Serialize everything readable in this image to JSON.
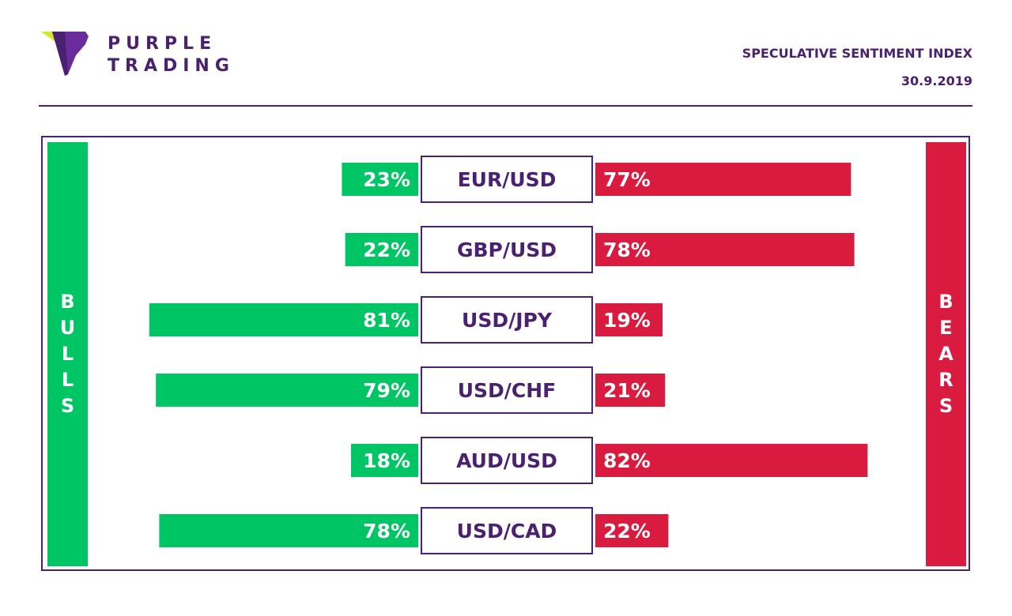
{
  "brand": {
    "line1": "PURPLE",
    "line2": "TRADING"
  },
  "header": {
    "title": "SPECULATIVE SENTIMENT INDEX",
    "date": "30.9.2019"
  },
  "sides": {
    "bulls": "BULLS",
    "bears": "BEARS"
  },
  "colors": {
    "bull": "#00c565",
    "bear": "#d81b3f",
    "purple": "#4a2070",
    "logo_lime": "#d4e82a"
  },
  "chart_data": {
    "type": "bar",
    "categories": [
      "EUR/USD",
      "GBP/USD",
      "USD/JPY",
      "USD/CHF",
      "AUD/USD",
      "USD/CAD"
    ],
    "series": [
      {
        "name": "BULLS",
        "values": [
          23,
          22,
          81,
          79,
          18,
          78
        ]
      },
      {
        "name": "BEARS",
        "values": [
          77,
          78,
          19,
          21,
          82,
          22
        ]
      }
    ],
    "value_labels": {
      "BULLS": [
        "23%",
        "22%",
        "81%",
        "79%",
        "18%",
        "78%"
      ],
      "BEARS": [
        "77%",
        "78%",
        "19%",
        "21%",
        "82%",
        "22%"
      ]
    },
    "unit": "%"
  }
}
